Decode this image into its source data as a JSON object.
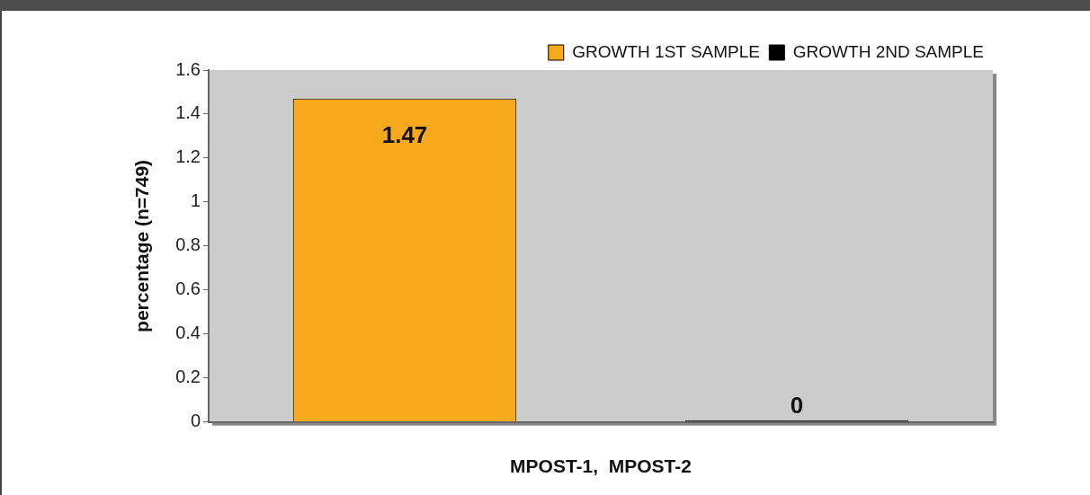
{
  "chart_data": {
    "type": "bar",
    "xlabel": "MPOST-1,  MPOST-2",
    "ylabel": "percentage (n=749)",
    "categories": [
      null
    ],
    "series": [
      {
        "name": "GROWTH 1ST SAMPLE",
        "color": "#f7a81b",
        "values": [
          1.47
        ]
      },
      {
        "name": "GROWTH 2ND SAMPLE",
        "color": "#000000",
        "values": [
          0
        ]
      }
    ],
    "ylim": [
      0,
      1.6
    ],
    "yticks": [
      0,
      0.2,
      0.4,
      0.6,
      0.8,
      1,
      1.2,
      1.4,
      1.6
    ],
    "data_labels": true,
    "legend": "top right"
  }
}
